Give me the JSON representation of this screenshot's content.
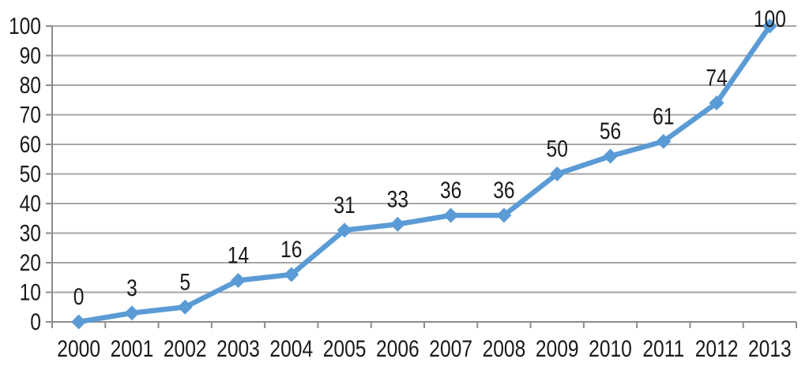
{
  "chart_data": {
    "type": "line",
    "categories": [
      "2000",
      "2001",
      "2002",
      "2003",
      "2004",
      "2005",
      "2006",
      "2007",
      "2008",
      "2009",
      "2010",
      "2011",
      "2012",
      "2013"
    ],
    "values": [
      0,
      3,
      5,
      14,
      16,
      31,
      33,
      36,
      36,
      50,
      56,
      61,
      74,
      100
    ],
    "data_labels": [
      "0",
      "3",
      "5",
      "14",
      "16",
      "31",
      "33",
      "36",
      "36",
      "50",
      "56",
      "61",
      "74",
      "100"
    ],
    "y_ticks": [
      0,
      10,
      20,
      30,
      40,
      50,
      60,
      70,
      80,
      90,
      100
    ],
    "ylim": [
      0,
      100
    ],
    "xlabel": "",
    "ylabel": "",
    "title": "",
    "legend": "none",
    "grid": "horizontal",
    "marker": "diamond",
    "data_label_position": "above",
    "colors": {
      "line": "#5B9BD5",
      "marker": "#5B9BD5",
      "grid": "#A6A6A6",
      "axis": "#8C8C8C",
      "text": "#1A1A1A",
      "background": "#FFFFFF"
    }
  }
}
